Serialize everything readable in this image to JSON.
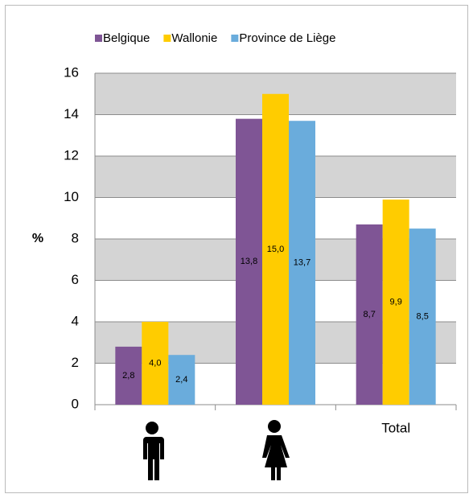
{
  "chart_data": {
    "type": "bar",
    "y_axis_label": "%",
    "categories": [
      null,
      null,
      "Total"
    ],
    "series": [
      {
        "name": "Belgique",
        "color": "#7f5595",
        "values": [
          2.8,
          13.8,
          8.7
        ],
        "value_labels": [
          "2,8",
          "13,8",
          "8,7"
        ]
      },
      {
        "name": "Wallonie",
        "color": "#ffcc00",
        "values": [
          4.0,
          15.0,
          9.9
        ],
        "value_labels": [
          "4,0",
          "15,0",
          "9,9"
        ]
      },
      {
        "name": "Province de Liège",
        "color": "#6aacdc",
        "values": [
          2.4,
          13.7,
          8.5
        ],
        "value_labels": [
          "2,4",
          "13,7",
          "8,5"
        ]
      }
    ],
    "ylim": [
      0,
      16
    ],
    "yticks": [
      0,
      2,
      4,
      6,
      8,
      10,
      12,
      14,
      16
    ],
    "grid": true,
    "legend": "top"
  }
}
